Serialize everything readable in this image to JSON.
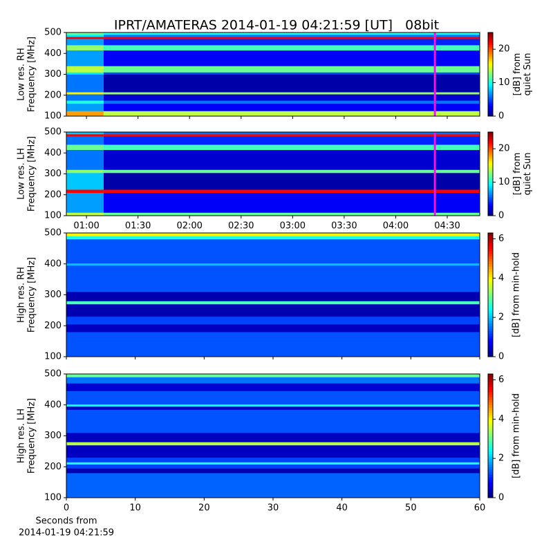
{
  "title": "IPRT/AMATERAS 2014-01-19 04:21:59 [UT]   08bit",
  "chart_data": [
    {
      "type": "heatmap",
      "colormap": "jet",
      "ylabel": [
        "Low res. RH",
        "Frequency [MHz]"
      ],
      "ylim": [
        100,
        500
      ],
      "yticks": [
        100,
        200,
        300,
        400,
        500
      ],
      "y_edges": [
        100,
        125,
        160,
        175,
        205,
        215,
        300,
        310,
        340,
        415,
        440,
        470,
        480,
        490,
        500
      ],
      "x_edges": [
        48.3,
        70,
        288.9
      ],
      "values": [
        [
          18,
          14
        ],
        [
          7,
          3
        ],
        [
          10,
          6
        ],
        [
          6,
          2
        ],
        [
          16,
          13
        ],
        [
          6,
          1
        ],
        [
          9,
          5
        ],
        [
          14,
          12
        ],
        [
          7,
          3
        ],
        [
          13,
          11
        ],
        [
          7,
          4
        ],
        [
          22,
          22
        ],
        [
          9,
          6
        ],
        [
          12,
          10
        ]
      ],
      "clim": [
        0,
        25
      ],
      "cticks": [
        0,
        10,
        20
      ],
      "clabel": [
        "[dB] from",
        "quiet Sun"
      ],
      "marker_x": 262.8,
      "marker_color": "#e020e0"
    },
    {
      "type": "heatmap",
      "colormap": "jet",
      "ylabel": [
        "Low res. LH",
        "Frequency [MHz]"
      ],
      "ylim": [
        100,
        500
      ],
      "yticks": [
        100,
        200,
        300,
        400,
        500
      ],
      "y_edges": [
        100,
        115,
        210,
        225,
        305,
        320,
        415,
        440,
        480,
        490,
        500
      ],
      "x_edges": [
        48.3,
        70,
        288.9
      ],
      "values": [
        [
          14,
          12
        ],
        [
          7,
          3
        ],
        [
          22,
          22
        ],
        [
          8,
          1
        ],
        [
          13,
          12
        ],
        [
          6,
          2
        ],
        [
          12,
          11
        ],
        [
          6,
          4
        ],
        [
          22,
          22
        ],
        [
          8,
          6
        ]
      ],
      "clim": [
        0,
        25
      ],
      "cticks": [
        0,
        10,
        20
      ],
      "clabel": [
        "[dB] from",
        "quiet Sun"
      ],
      "xlim": [
        48.3,
        288.9
      ],
      "xticks": [
        {
          "value": 60,
          "label": "01:00"
        },
        {
          "value": 90,
          "label": "01:30"
        },
        {
          "value": 120,
          "label": "02:00"
        },
        {
          "value": 150,
          "label": "02:30"
        },
        {
          "value": 180,
          "label": "03:00"
        },
        {
          "value": 210,
          "label": "03:30"
        },
        {
          "value": 240,
          "label": "04:00"
        },
        {
          "value": 270,
          "label": "04:30"
        }
      ],
      "marker_x": 262.8,
      "marker_color": "#e020e0"
    },
    {
      "type": "heatmap",
      "colormap": "jet",
      "ylabel": [
        "High res. RH",
        "Frequency [MHz]"
      ],
      "ylim": [
        100,
        500
      ],
      "yticks": [
        100,
        200,
        300,
        400,
        500
      ],
      "y_edges": [
        100,
        180,
        205,
        230,
        270,
        280,
        310,
        395,
        402,
        480,
        490,
        500
      ],
      "x_edges": [
        0,
        60
      ],
      "values": [
        [
          1.3
        ],
        [
          0.4
        ],
        [
          1.2
        ],
        [
          0.3
        ],
        [
          2.8
        ],
        [
          0.3
        ],
        [
          1.3
        ],
        [
          2
        ],
        [
          1.3
        ],
        [
          2.5
        ],
        [
          4
        ]
      ],
      "clim": [
        0,
        6.3
      ],
      "cticks": [
        0,
        2,
        4,
        6
      ],
      "clabel": [
        "[dB] from min-hold"
      ]
    },
    {
      "type": "heatmap",
      "colormap": "jet",
      "ylabel": [
        "High res. LH",
        "Frequency [MHz]"
      ],
      "ylim": [
        100,
        500
      ],
      "yticks": [
        100,
        200,
        300,
        400,
        500
      ],
      "y_edges": [
        100,
        180,
        195,
        208,
        215,
        230,
        270,
        280,
        310,
        385,
        395,
        402,
        445,
        470,
        490,
        500
      ],
      "x_edges": [
        0,
        60
      ],
      "values": [
        [
          1.4
        ],
        [
          0.3
        ],
        [
          1.2
        ],
        [
          2.5
        ],
        [
          1.2
        ],
        [
          0.4
        ],
        [
          3.5
        ],
        [
          0.4
        ],
        [
          1.3
        ],
        [
          0.4
        ],
        [
          2.5
        ],
        [
          1.3
        ],
        [
          0.5
        ],
        [
          1.5
        ],
        [
          3
        ]
      ],
      "clim": [
        0,
        6.3
      ],
      "cticks": [
        0,
        2,
        4,
        6
      ],
      "clabel": [
        "[dB] from min-hold"
      ],
      "xlim": [
        0,
        60
      ],
      "xticks": [
        0,
        10,
        20,
        30,
        40,
        50,
        60
      ],
      "xlabel": [
        "Seconds from",
        "2014-01-19 04:21:59"
      ]
    }
  ]
}
